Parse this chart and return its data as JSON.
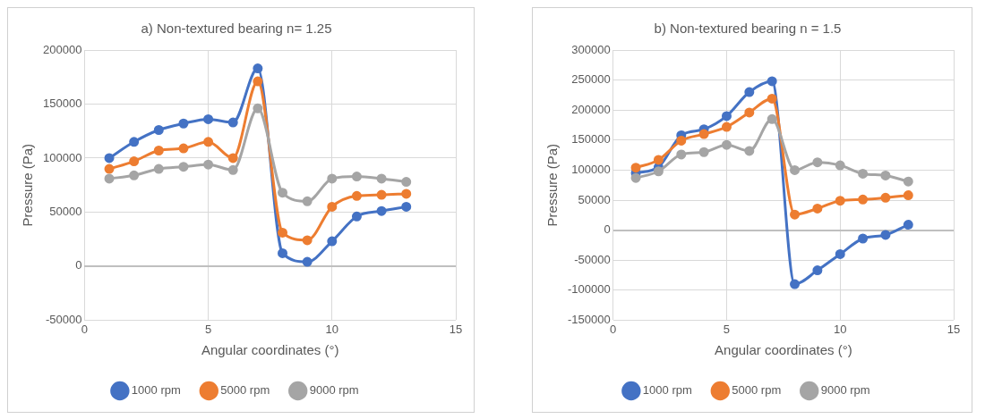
{
  "chart_data": [
    {
      "type": "line",
      "title": "a) Non-textured bearing n= 1.25",
      "xlabel": "Angular coordinates (°)",
      "ylabel": "Pressure (Pa)",
      "x": [
        1,
        2,
        3,
        4,
        5,
        6,
        7,
        8,
        9,
        10,
        11,
        12,
        13
      ],
      "xlim": [
        0,
        15
      ],
      "xticks": [
        0,
        5,
        10,
        15
      ],
      "ylim": [
        -50000,
        200000
      ],
      "yticks": [
        -50000,
        0,
        50000,
        100000,
        150000,
        200000
      ],
      "grid": true,
      "legend": "bottom",
      "marker": "circle",
      "series": [
        {
          "name": "1000 rpm",
          "color": "#4472c4",
          "values": [
            100000,
            115000,
            126000,
            132000,
            136000,
            133000,
            183000,
            12000,
            4000,
            23000,
            46000,
            51000,
            55000
          ]
        },
        {
          "name": "5000 rpm",
          "color": "#ed7d31",
          "values": [
            90000,
            97000,
            107000,
            109000,
            115000,
            100000,
            171000,
            31000,
            24000,
            55000,
            65000,
            66000,
            67000
          ]
        },
        {
          "name": "9000 rpm",
          "color": "#a5a5a5",
          "values": [
            81000,
            84000,
            90000,
            92000,
            94000,
            89000,
            146000,
            68000,
            60000,
            81000,
            83000,
            81000,
            78000
          ]
        }
      ]
    },
    {
      "type": "line",
      "title": "b) Non-textured bearing n = 1.5",
      "xlabel": "Angular coordinates (°)",
      "ylabel": "Pressure (Pa)",
      "x": [
        1,
        2,
        3,
        4,
        5,
        6,
        7,
        8,
        9,
        10,
        11,
        12,
        13
      ],
      "xlim": [
        0,
        15
      ],
      "xticks": [
        0,
        5,
        10,
        15
      ],
      "ylim": [
        -150000,
        300000
      ],
      "yticks": [
        -150000,
        -100000,
        -50000,
        0,
        50000,
        100000,
        150000,
        200000,
        250000,
        300000
      ],
      "grid": true,
      "legend": "bottom",
      "marker": "circle",
      "series": [
        {
          "name": "1000 rpm",
          "color": "#4472c4",
          "values": [
            95000,
            105000,
            158000,
            168000,
            190000,
            230000,
            248000,
            -90000,
            -67000,
            -40000,
            -14000,
            -8000,
            9000
          ]
        },
        {
          "name": "5000 rpm",
          "color": "#ed7d31",
          "values": [
            104000,
            117000,
            149000,
            160000,
            172000,
            196000,
            219000,
            26000,
            36000,
            49000,
            51000,
            54000,
            58000
          ]
        },
        {
          "name": "9000 rpm",
          "color": "#a5a5a5",
          "values": [
            87000,
            98000,
            126000,
            130000,
            142000,
            132000,
            185000,
            100000,
            113000,
            108000,
            94000,
            91000,
            81000
          ]
        }
      ]
    }
  ]
}
